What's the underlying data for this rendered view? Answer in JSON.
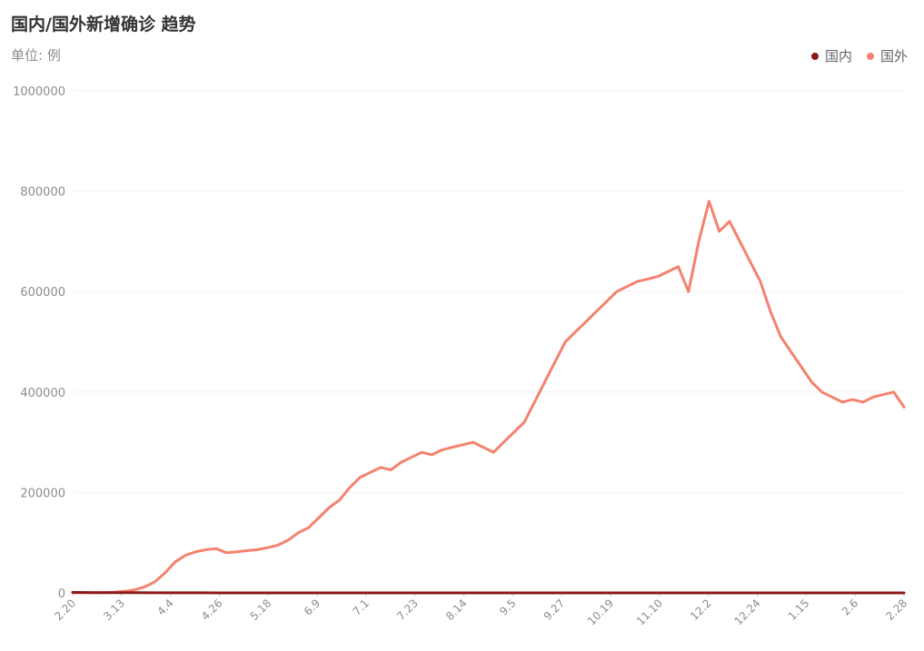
{
  "chart": {
    "title": "国内/国外新增确诊 趋势",
    "unit_label": "单位: 例",
    "legend": [
      {
        "name": "国内",
        "color": "#8b1a1a"
      },
      {
        "name": "国外",
        "color": "#f4826e"
      }
    ]
  },
  "chart_data": {
    "type": "line",
    "title": "国内/国外新增确诊 趋势",
    "ylabel": "单位: 例",
    "ylim": [
      0,
      1000000
    ],
    "yticks": [
      0,
      200000,
      400000,
      600000,
      800000,
      1000000
    ],
    "xticks": [
      "2.20",
      "3.13",
      "4.4",
      "4.26",
      "5.18",
      "6.9",
      "7.1",
      "7.23",
      "8.14",
      "9.5",
      "9.27",
      "10.19",
      "11.10",
      "12.2",
      "12.24",
      "1.15",
      "2.6",
      "2.28"
    ],
    "legend_position": "top-right",
    "grid": true,
    "series": [
      {
        "name": "国内",
        "color": "#8b1a1a",
        "values": [
          1000,
          600,
          400,
          300,
          150,
          120,
          100,
          80,
          60,
          50,
          40,
          45,
          50,
          40,
          30,
          35,
          30,
          25,
          30,
          40,
          35,
          30,
          30,
          20,
          20,
          25,
          30,
          40,
          20,
          30,
          25,
          30,
          30,
          25,
          20,
          50,
          80,
          60,
          30,
          20
        ]
      },
      {
        "name": "国外",
        "color": "#f4826e",
        "values": [
          200,
          300,
          500,
          800,
          1500,
          3000,
          6000,
          12000,
          22000,
          40000,
          62000,
          75000,
          82000,
          86000,
          88000,
          80000,
          82000,
          84000,
          86000,
          90000,
          95000,
          105000,
          120000,
          130000,
          150000,
          170000,
          185000,
          210000,
          230000,
          240000,
          250000,
          245000,
          260000,
          270000,
          280000,
          275000,
          285000,
          290000,
          295000,
          300000,
          290000,
          280000,
          300000,
          320000,
          340000,
          380000,
          420000,
          460000,
          500000,
          520000,
          540000,
          560000,
          580000,
          600000,
          610000,
          620000,
          625000,
          630000,
          640000,
          650000,
          600000,
          700000,
          780000,
          720000,
          740000,
          700000,
          660000,
          620000,
          560000,
          510000,
          480000,
          450000,
          420000,
          400000,
          390000,
          380000,
          385000,
          380000,
          390000,
          395000,
          400000,
          370000
        ]
      }
    ]
  }
}
